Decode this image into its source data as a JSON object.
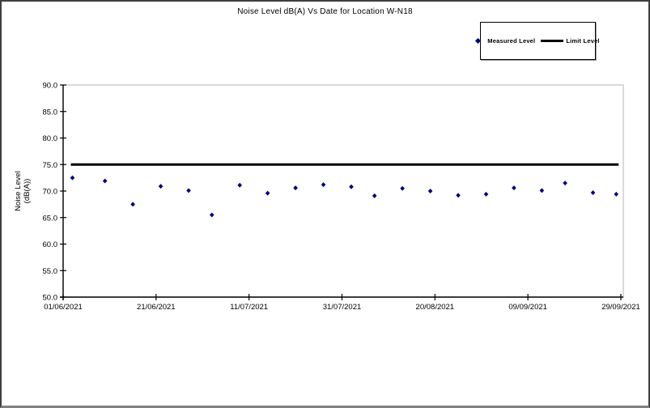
{
  "chart": {
    "title": "Noise Level dB(A) Vs Date for Location W-N18",
    "legend": {
      "measured_label": "Measured Level",
      "limit_label": "Limit Level"
    },
    "y_axis": {
      "title_line1": "Noise Level",
      "title_line2": "(dB(A))"
    }
  },
  "chart_data": {
    "type": "scatter",
    "title": "Noise Level dB(A) Vs Date for Location W-N18",
    "xlabel": "",
    "ylabel": "Noise Level (dB(A))",
    "ylim": [
      50.0,
      90.0
    ],
    "y_ticks": [
      50.0,
      55.0,
      60.0,
      65.0,
      70.0,
      75.0,
      80.0,
      85.0,
      90.0
    ],
    "y_tick_labels": [
      "50.0",
      "55.0",
      "60.0",
      "65.0",
      "70.0",
      "75.0",
      "80.0",
      "85.0",
      "90.0"
    ],
    "x_tick_labels": [
      "01/06/2021",
      "21/06/2021",
      "11/07/2021",
      "31/07/2021",
      "20/08/2021",
      "09/09/2021",
      "29/09/2021"
    ],
    "x_start_date": "01/06/2021",
    "x_end_date": "29/09/2021",
    "x_tick_interval_days": 20,
    "grid": false,
    "legend_position": "top-right",
    "series": [
      {
        "name": "Measured Level",
        "type": "scatter",
        "marker": "diamond",
        "color": "#000080",
        "x": [
          "03/06/2021",
          "10/06/2021",
          "16/06/2021",
          "22/06/2021",
          "28/06/2021",
          "03/07/2021",
          "09/07/2021",
          "15/07/2021",
          "21/07/2021",
          "27/07/2021",
          "02/08/2021",
          "07/08/2021",
          "13/08/2021",
          "19/08/2021",
          "25/08/2021",
          "31/08/2021",
          "06/09/2021",
          "12/09/2021",
          "17/09/2021",
          "23/09/2021",
          "28/09/2021"
        ],
        "y": [
          72.5,
          71.9,
          67.5,
          70.9,
          70.1,
          65.5,
          71.1,
          69.6,
          70.6,
          71.2,
          70.8,
          69.1,
          70.5,
          70.0,
          69.2,
          69.4,
          70.6,
          70.1,
          71.5,
          69.7,
          69.4
        ]
      },
      {
        "name": "Limit Level",
        "type": "line",
        "color": "#000000",
        "value": 75.0
      }
    ]
  },
  "colors": {
    "marker": "#000080",
    "limit_line": "#000000",
    "axis": "#000000",
    "plot_frame": "#c0c0c0",
    "outer_border": "#3f3f3f"
  }
}
